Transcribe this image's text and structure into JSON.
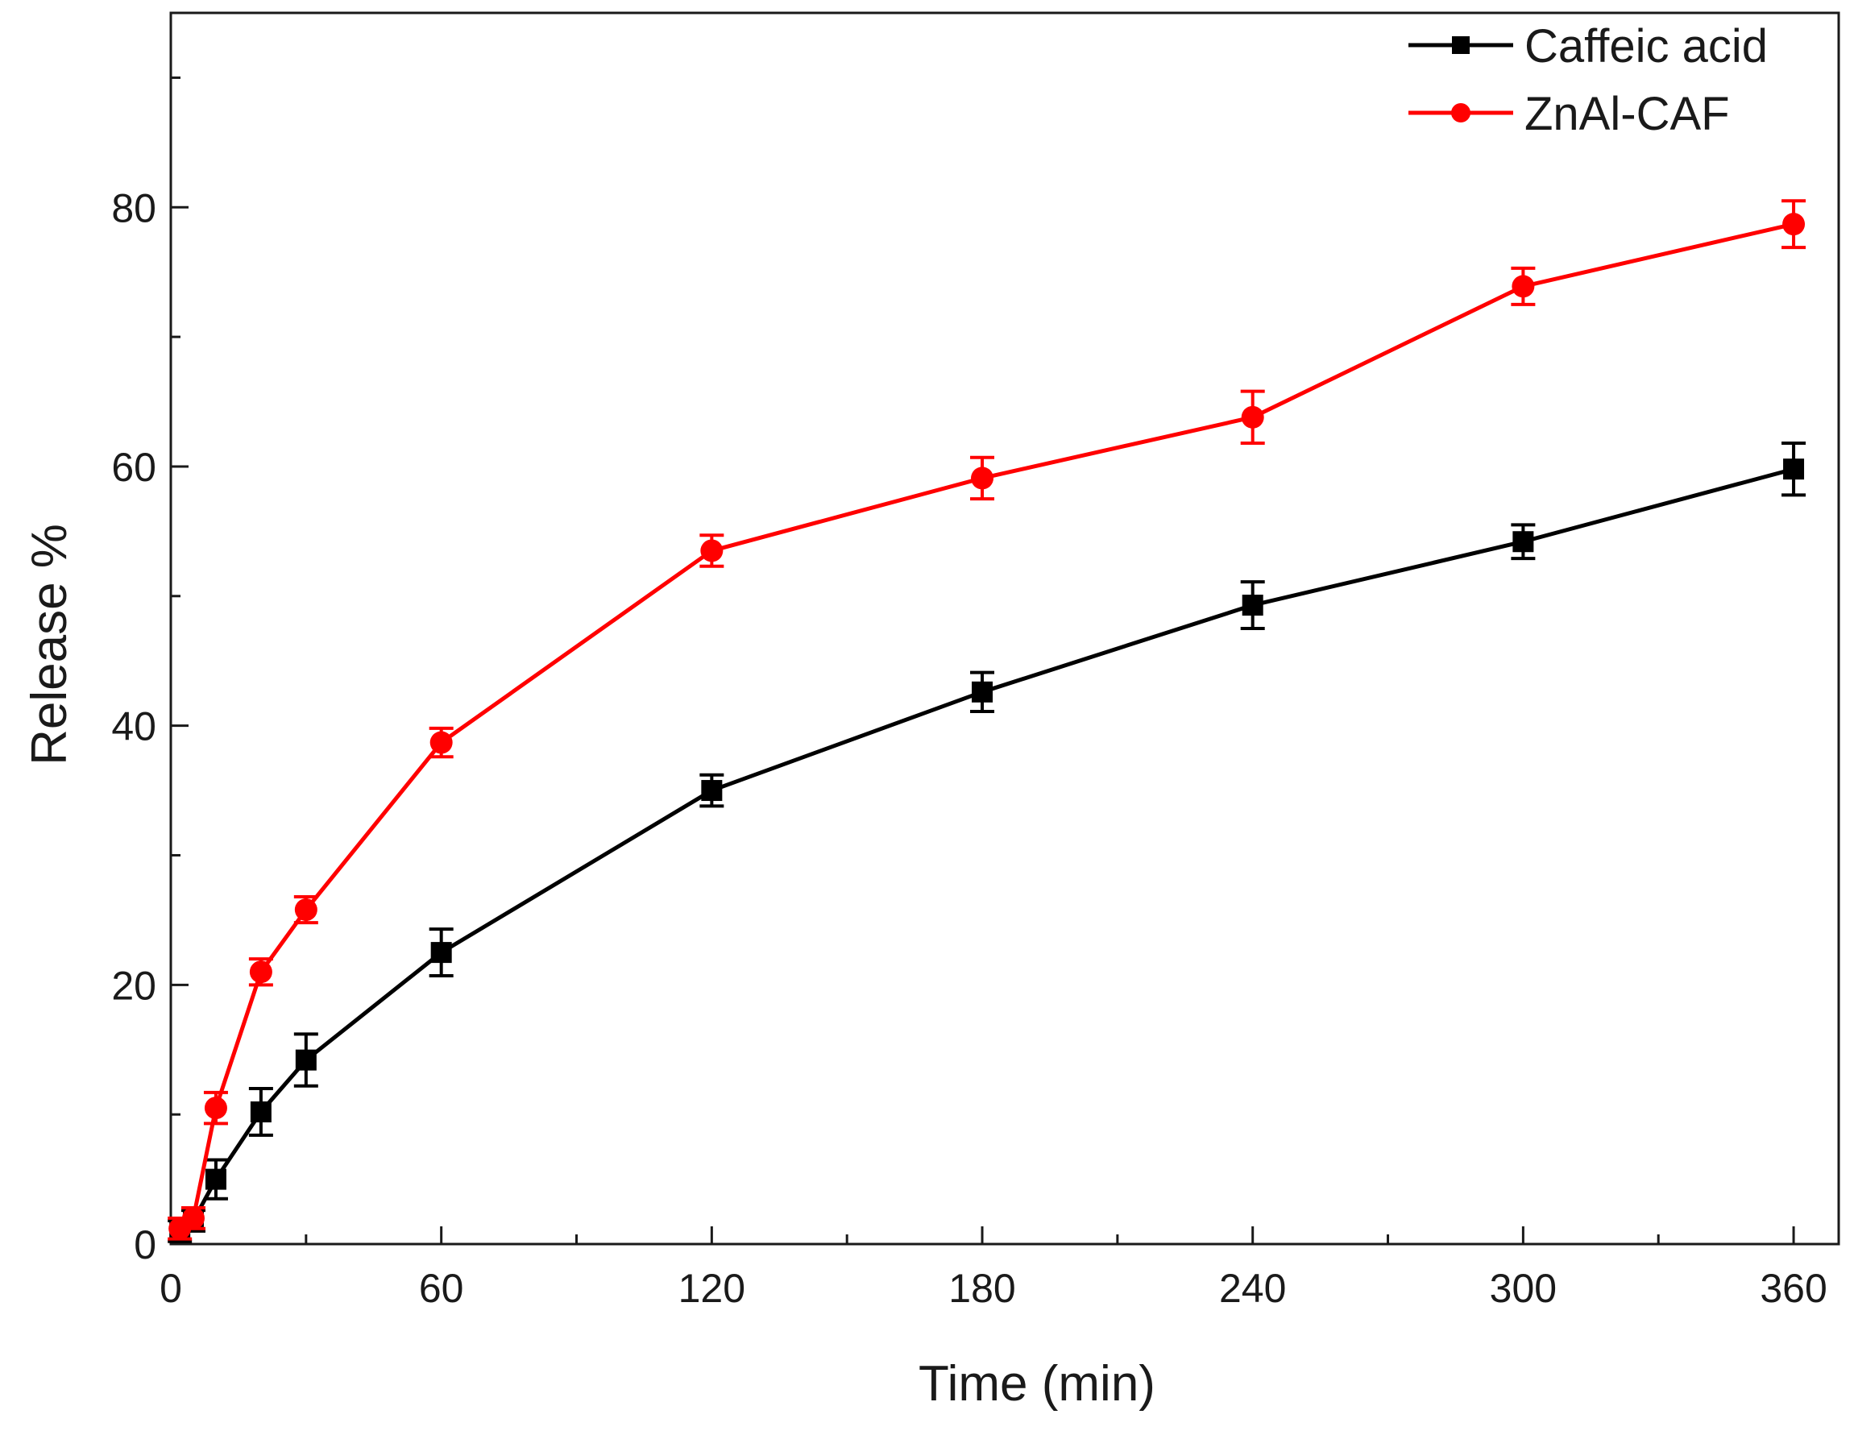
{
  "chart_data": {
    "type": "line",
    "xlabel": "Time (min)",
    "ylabel": "Release %",
    "xlim": [
      0,
      370
    ],
    "ylim": [
      0,
      95
    ],
    "xticks": [
      0,
      60,
      120,
      180,
      240,
      300,
      360
    ],
    "xtick_labels": [
      "0",
      "60",
      "120",
      "180",
      "240",
      "300",
      "360"
    ],
    "x_minor_ticks": [
      30,
      90,
      150,
      210,
      270,
      330
    ],
    "yticks": [
      0,
      20,
      40,
      60,
      80
    ],
    "ytick_labels": [
      "0",
      "20",
      "40",
      "60",
      "80"
    ],
    "y_minor_ticks": [
      10,
      30,
      50,
      70,
      90
    ],
    "grid": false,
    "legend_position": "top-right",
    "series": [
      {
        "name": "Caffeic acid",
        "color": "#000000",
        "marker": "square",
        "x": [
          2,
          5,
          10,
          20,
          30,
          60,
          120,
          180,
          240,
          300,
          360
        ],
        "y": [
          1.0,
          1.8,
          5.0,
          10.2,
          14.2,
          22.5,
          35.0,
          42.6,
          49.3,
          54.2,
          59.8
        ],
        "error": [
          0.8,
          0.8,
          1.5,
          1.8,
          2.0,
          1.8,
          1.2,
          1.5,
          1.8,
          1.3,
          2.0
        ]
      },
      {
        "name": "ZnAl-CAF",
        "color": "#ff0000",
        "marker": "circle",
        "x": [
          2,
          5,
          10,
          20,
          30,
          60,
          120,
          180,
          240,
          300,
          360
        ],
        "y": [
          1.2,
          2.0,
          10.5,
          21.0,
          25.8,
          38.7,
          53.5,
          59.1,
          63.8,
          73.9,
          78.7
        ],
        "error": [
          0.8,
          0.8,
          1.2,
          1.0,
          1.0,
          1.1,
          1.2,
          1.6,
          2.0,
          1.4,
          1.8
        ]
      }
    ]
  }
}
